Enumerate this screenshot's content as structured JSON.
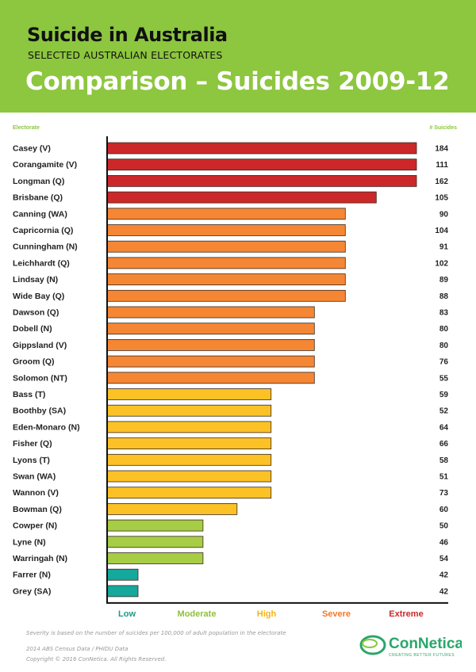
{
  "header": {
    "title": "Suicide in Australia",
    "subtitle": "SELECTED AUSTRALIAN ELECTORATES",
    "main_title": "Comparison – Suicides 2009-12",
    "bg_color": "#8dc63f"
  },
  "chart_data": {
    "type": "bar",
    "orientation": "horizontal",
    "category_header": "Electorate",
    "value_header": "# Suicides",
    "note": "Bar length encodes severity level, not the # Suicides value",
    "categories": [
      "Casey (V)",
      "Corangamite (V)",
      "Longman (Q)",
      "Brisbane (Q)",
      "Canning (WA)",
      "Capricornia (Q)",
      "Cunningham (N)",
      "Leichhardt (Q)",
      "Lindsay (N)",
      "Wide Bay (Q)",
      "Dawson (Q)",
      "Dobell (N)",
      "Gippsland (V)",
      "Groom (Q)",
      "Solomon (NT)",
      "Bass (T)",
      "Boothby (SA)",
      "Eden-Monaro (N)",
      "Fisher (Q)",
      "Lyons (T)",
      "Swan (WA)",
      "Wannon (V)",
      "Bowman (Q)",
      "Cowper (N)",
      "Lyne (N)",
      "Warringah (N)",
      "Farrer (N)",
      "Grey (SA)"
    ],
    "suicides": [
      184,
      111,
      162,
      105,
      90,
      104,
      91,
      102,
      89,
      88,
      83,
      80,
      80,
      76,
      55,
      59,
      52,
      64,
      66,
      58,
      51,
      73,
      60,
      50,
      46,
      54,
      42,
      42
    ],
    "relative_severity": [
      1.0,
      1.0,
      1.0,
      0.87,
      0.77,
      0.77,
      0.77,
      0.77,
      0.77,
      0.77,
      0.67,
      0.67,
      0.67,
      0.67,
      0.67,
      0.53,
      0.53,
      0.53,
      0.53,
      0.53,
      0.53,
      0.53,
      0.42,
      0.31,
      0.31,
      0.31,
      0.1,
      0.1
    ],
    "severity": [
      "Extreme",
      "Extreme",
      "Extreme",
      "Extreme",
      "Severe",
      "Severe",
      "Severe",
      "Severe",
      "Severe",
      "Severe",
      "Severe",
      "Severe",
      "Severe",
      "Severe",
      "Severe",
      "High",
      "High",
      "High",
      "High",
      "High",
      "High",
      "High",
      "High",
      "Moderate",
      "Moderate",
      "Moderate",
      "Low",
      "Low"
    ],
    "legend": [
      {
        "label": "Low",
        "color": "#15a89c"
      },
      {
        "label": "Moderate",
        "color": "#a6cd45"
      },
      {
        "label": "High",
        "color": "#fbc125"
      },
      {
        "label": "Severe",
        "color": "#f58634"
      },
      {
        "label": "Extreme",
        "color": "#cc2829"
      }
    ],
    "legend_text_colors": {
      "Low": "#1a9a8a",
      "Moderate": "#8fbf3c",
      "High": "#f6b317",
      "Severe": "#f07a2a",
      "Extreme": "#cc2829"
    },
    "header_color": "#8dc63f"
  },
  "footnotes": {
    "note": "Severity is based on the number of suicides per 100,000 of adult population in the electorate",
    "source": "2014 ABS Census Data / PHIDU Data",
    "copyright": "Copyright © 2016 ConNetica. All Rights Reserved."
  },
  "logo": {
    "name": "ConNetica",
    "tagline": "CREATING BETTER FUTURES",
    "color": "#2aa66a"
  }
}
